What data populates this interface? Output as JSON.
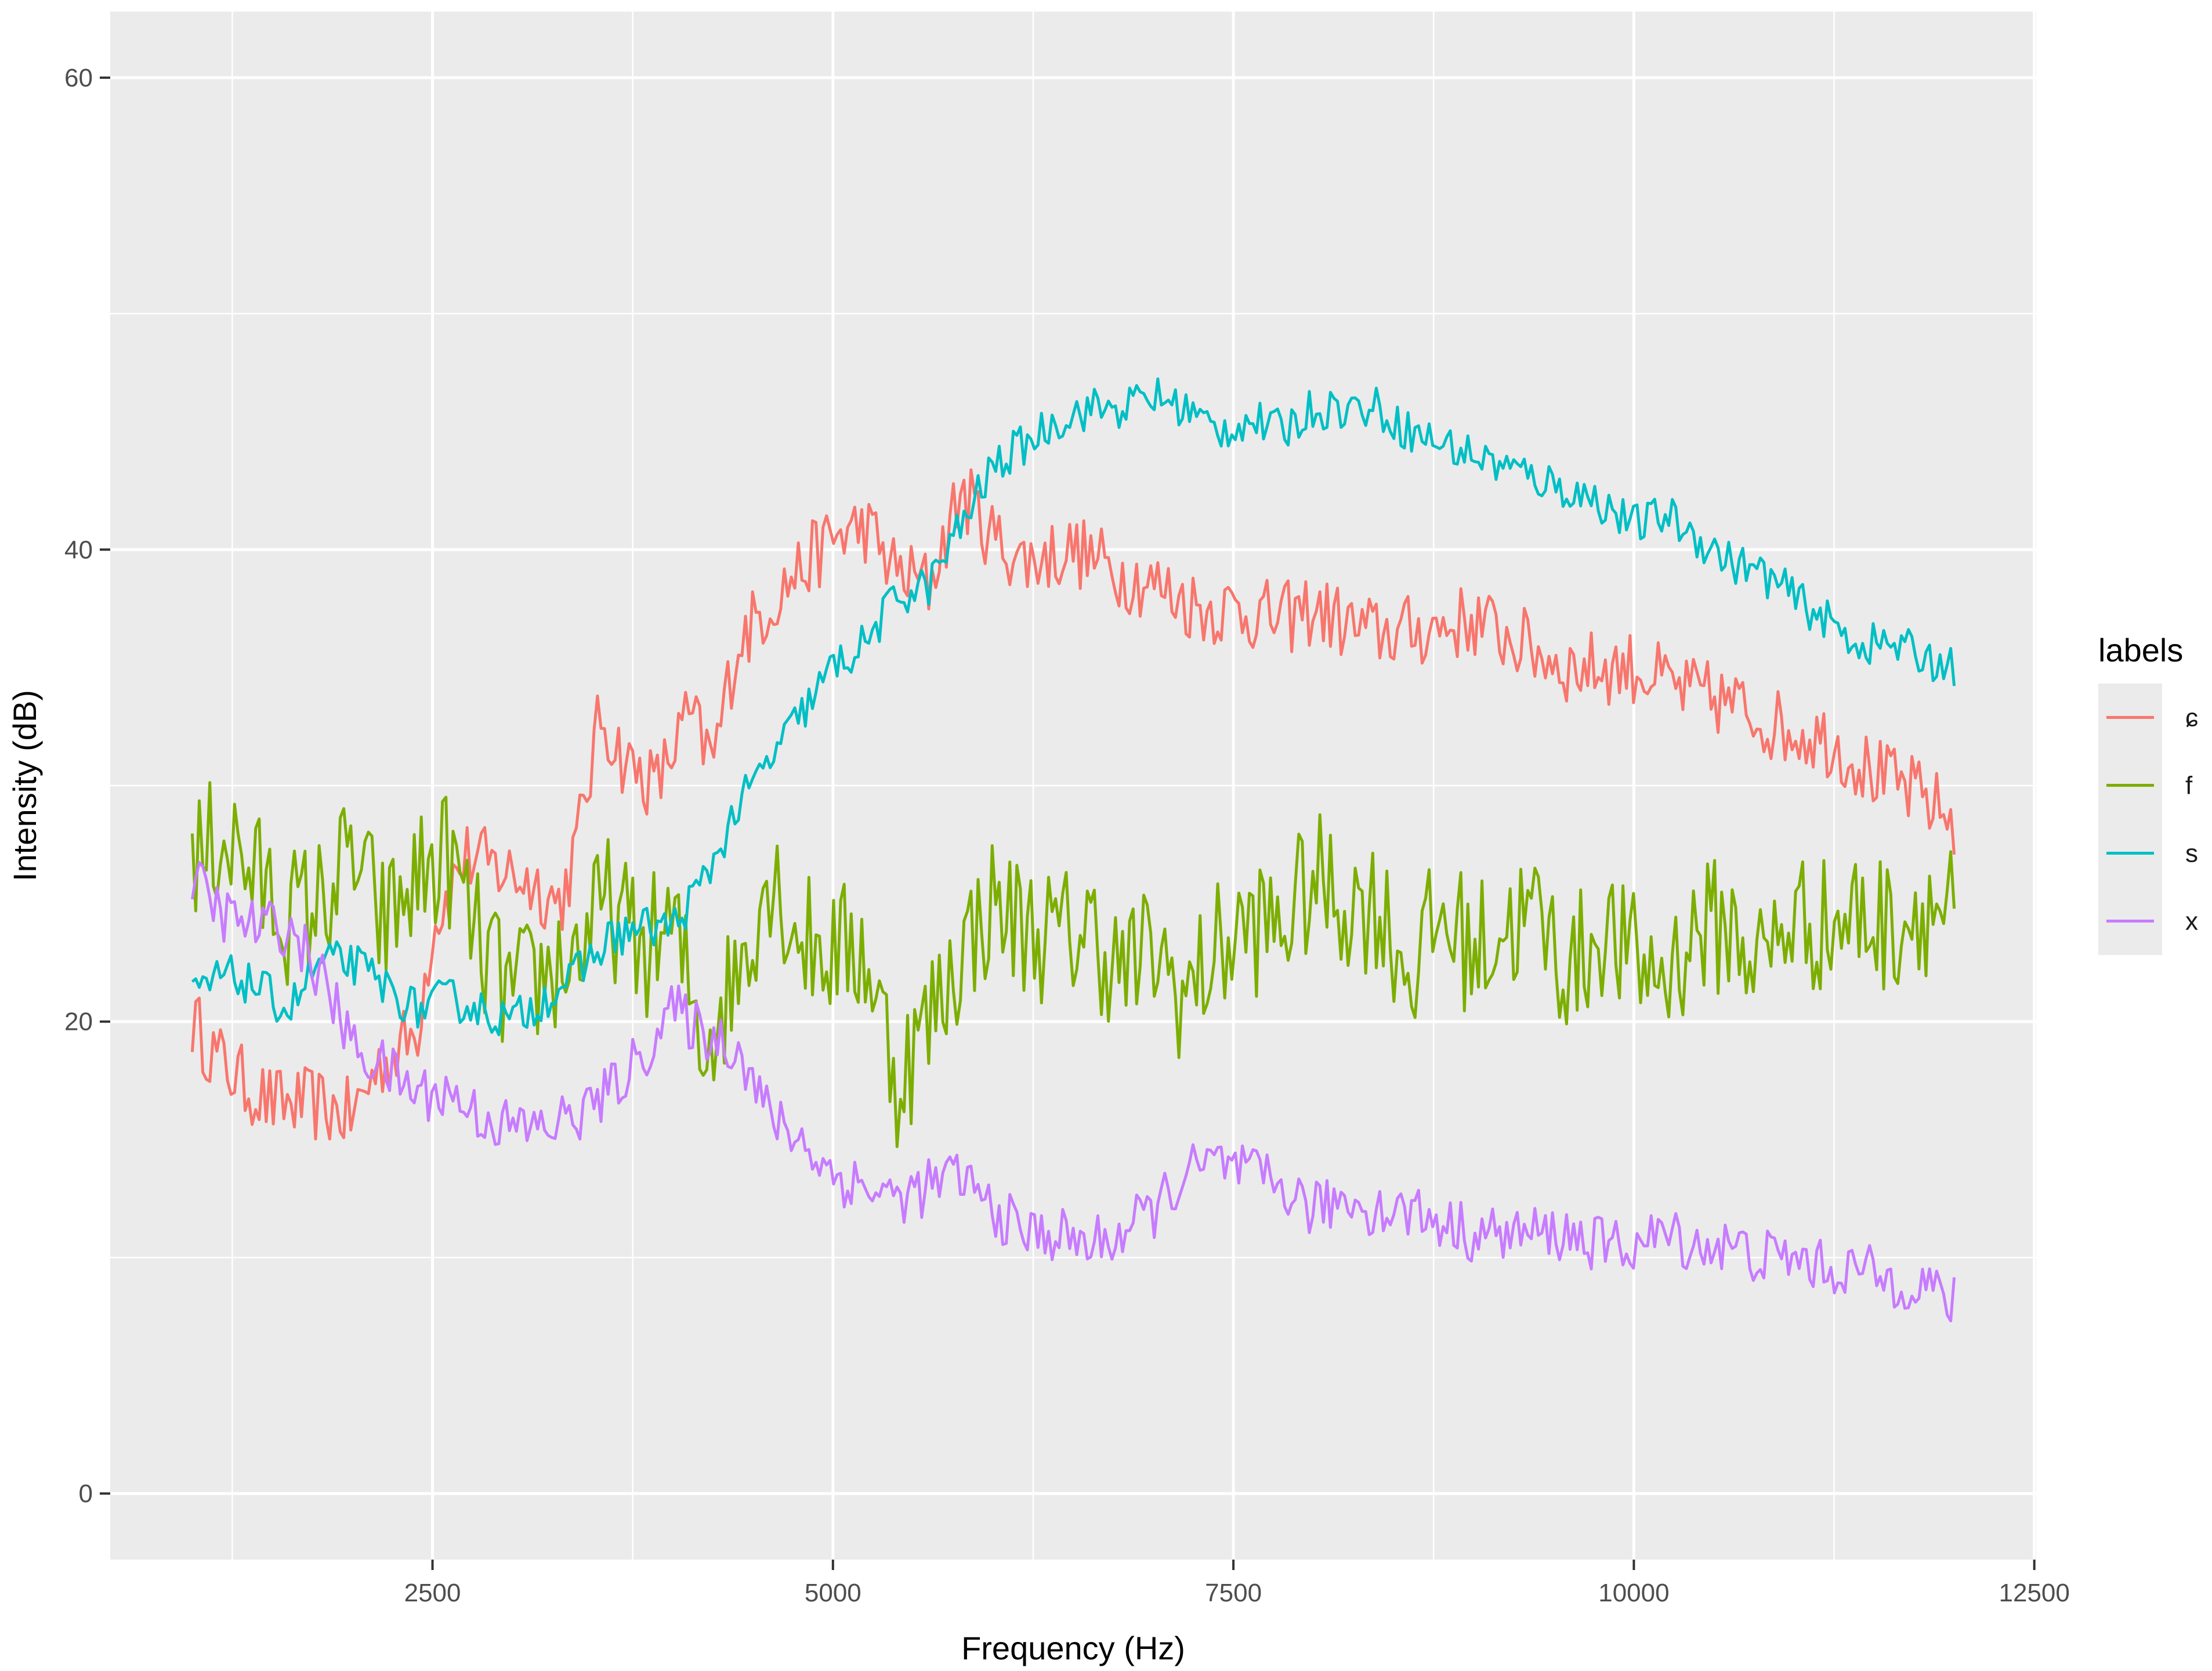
{
  "chart_data": {
    "type": "line",
    "xlabel": "Frequency (Hz)",
    "ylabel": "Intensity (dB)",
    "xlim": [
      488,
      12512
    ],
    "ylim": [
      -2.8,
      62.8
    ],
    "x_ticks": [
      2500,
      5000,
      7500,
      10000,
      12500
    ],
    "y_ticks": [
      0,
      20,
      40,
      60
    ],
    "grid": true,
    "legend": {
      "title": "labels",
      "placement": "right"
    },
    "colors": {
      "panel": "#ebebeb",
      "grid": "#ffffff"
    },
    "series": [
      {
        "name": "ɕ",
        "color": "#F8766D",
        "points": [
          [
            1000,
            20
          ],
          [
            1150,
            18.5
          ],
          [
            1300,
            17.5
          ],
          [
            1500,
            16.5
          ],
          [
            1750,
            16.5
          ],
          [
            2000,
            16
          ],
          [
            2150,
            18
          ],
          [
            2400,
            19.5
          ],
          [
            2500,
            24
          ],
          [
            2700,
            27
          ],
          [
            2900,
            26.5
          ],
          [
            3100,
            26
          ],
          [
            3300,
            25
          ],
          [
            3400,
            27.5
          ],
          [
            3550,
            33
          ],
          [
            3700,
            31
          ],
          [
            3900,
            30
          ],
          [
            4100,
            33
          ],
          [
            4250,
            31
          ],
          [
            4400,
            36
          ],
          [
            4700,
            38.5
          ],
          [
            5000,
            40.5
          ],
          [
            5200,
            41
          ],
          [
            5400,
            39
          ],
          [
            5600,
            38.5
          ],
          [
            5800,
            42.5
          ],
          [
            6000,
            40.5
          ],
          [
            6200,
            39.5
          ],
          [
            6500,
            40
          ],
          [
            6800,
            39
          ],
          [
            7000,
            38.5
          ],
          [
            7300,
            37.5
          ],
          [
            7500,
            37.5
          ],
          [
            7800,
            37
          ],
          [
            8000,
            37.5
          ],
          [
            8300,
            36.5
          ],
          [
            8600,
            36.5
          ],
          [
            9000,
            37
          ],
          [
            9300,
            36
          ],
          [
            9600,
            35
          ],
          [
            10000,
            35
          ],
          [
            10300,
            34
          ],
          [
            10600,
            33.5
          ],
          [
            10900,
            32.5
          ],
          [
            11200,
            32
          ],
          [
            11500,
            30.5
          ],
          [
            11800,
            29.5
          ],
          [
            12000,
            28.5
          ]
        ]
      },
      {
        "name": "f",
        "color": "#7CAE00",
        "points": [
          [
            1000,
            26.5
          ],
          [
            1200,
            28
          ],
          [
            1400,
            26
          ],
          [
            1600,
            24.5
          ],
          [
            1800,
            25
          ],
          [
            2000,
            27
          ],
          [
            2200,
            24
          ],
          [
            2400,
            26
          ],
          [
            2600,
            27
          ],
          [
            2800,
            23
          ],
          [
            3000,
            21
          ],
          [
            3200,
            22
          ],
          [
            3400,
            23
          ],
          [
            3600,
            25
          ],
          [
            3800,
            23
          ],
          [
            4000,
            24
          ],
          [
            4200,
            19
          ],
          [
            4400,
            22
          ],
          [
            4600,
            26.5
          ],
          [
            4800,
            23.5
          ],
          [
            5000,
            23
          ],
          [
            5200,
            23
          ],
          [
            5400,
            17.5
          ],
          [
            5600,
            20
          ],
          [
            5800,
            23
          ],
          [
            6000,
            25
          ],
          [
            6200,
            24
          ],
          [
            6400,
            23.5
          ],
          [
            6600,
            24
          ],
          [
            6800,
            22
          ],
          [
            7000,
            23
          ],
          [
            7200,
            21
          ],
          [
            7400,
            23
          ],
          [
            7600,
            24
          ],
          [
            7800,
            24
          ],
          [
            8000,
            26
          ],
          [
            8200,
            25
          ],
          [
            8400,
            25
          ],
          [
            8600,
            22
          ],
          [
            8800,
            24.5
          ],
          [
            9000,
            23
          ],
          [
            9200,
            24
          ],
          [
            9400,
            24.5
          ],
          [
            9600,
            22
          ],
          [
            9800,
            24
          ],
          [
            10000,
            22.5
          ],
          [
            10200,
            22
          ],
          [
            10400,
            24
          ],
          [
            10600,
            24
          ],
          [
            10800,
            22.5
          ],
          [
            11000,
            24.5
          ],
          [
            11200,
            24
          ],
          [
            11400,
            24.5
          ],
          [
            11600,
            24
          ],
          [
            11800,
            25
          ],
          [
            12000,
            24.5
          ]
        ]
      },
      {
        "name": "s",
        "color": "#00BFC4",
        "points": [
          [
            1000,
            21
          ],
          [
            1200,
            22
          ],
          [
            1400,
            21.5
          ],
          [
            1600,
            20.5
          ],
          [
            1800,
            22.5
          ],
          [
            2000,
            22.5
          ],
          [
            2200,
            21.5
          ],
          [
            2400,
            20.5
          ],
          [
            2600,
            21
          ],
          [
            2800,
            20.5
          ],
          [
            3000,
            20
          ],
          [
            3200,
            21
          ],
          [
            3400,
            22
          ],
          [
            3600,
            23.5
          ],
          [
            3800,
            24
          ],
          [
            4000,
            24
          ],
          [
            4200,
            26
          ],
          [
            4400,
            29
          ],
          [
            4600,
            31
          ],
          [
            4800,
            33
          ],
          [
            5000,
            35
          ],
          [
            5200,
            36
          ],
          [
            5400,
            38
          ],
          [
            5600,
            38.5
          ],
          [
            5800,
            41
          ],
          [
            6000,
            43.5
          ],
          [
            6200,
            44.5
          ],
          [
            6400,
            45.5
          ],
          [
            6600,
            46
          ],
          [
            6800,
            46
          ],
          [
            7000,
            46.5
          ],
          [
            7200,
            46
          ],
          [
            7400,
            45
          ],
          [
            7600,
            45.5
          ],
          [
            7800,
            45
          ],
          [
            8000,
            46
          ],
          [
            8200,
            46
          ],
          [
            8400,
            46
          ],
          [
            8600,
            45
          ],
          [
            8800,
            44.5
          ],
          [
            9000,
            44
          ],
          [
            9200,
            43.5
          ],
          [
            9400,
            43
          ],
          [
            9600,
            42.5
          ],
          [
            9800,
            42
          ],
          [
            10000,
            41
          ],
          [
            10200,
            41.5
          ],
          [
            10400,
            40.5
          ],
          [
            10600,
            39.5
          ],
          [
            10800,
            39
          ],
          [
            11000,
            38
          ],
          [
            11200,
            37
          ],
          [
            11400,
            36
          ],
          [
            11600,
            36
          ],
          [
            11800,
            35.5
          ],
          [
            12000,
            35
          ]
        ]
      },
      {
        "name": "x",
        "color": "#C77CFF",
        "points": [
          [
            1000,
            26
          ],
          [
            1200,
            24.5
          ],
          [
            1400,
            24
          ],
          [
            1600,
            24
          ],
          [
            1800,
            22
          ],
          [
            2000,
            19
          ],
          [
            2200,
            18
          ],
          [
            2400,
            17
          ],
          [
            2600,
            17
          ],
          [
            2800,
            16
          ],
          [
            3000,
            15.5
          ],
          [
            3200,
            15.5
          ],
          [
            3400,
            16
          ],
          [
            3600,
            17
          ],
          [
            3800,
            18.5
          ],
          [
            4000,
            20.5
          ],
          [
            4200,
            19.5
          ],
          [
            4400,
            19
          ],
          [
            4600,
            16
          ],
          [
            4800,
            15
          ],
          [
            5000,
            13.5
          ],
          [
            5200,
            13
          ],
          [
            5400,
            12.5
          ],
          [
            5600,
            13
          ],
          [
            5800,
            13.5
          ],
          [
            6000,
            12
          ],
          [
            6200,
            11
          ],
          [
            6400,
            11
          ],
          [
            6600,
            10.5
          ],
          [
            6800,
            11
          ],
          [
            7000,
            12
          ],
          [
            7200,
            13.5
          ],
          [
            7400,
            14
          ],
          [
            7600,
            13.5
          ],
          [
            7800,
            13
          ],
          [
            8000,
            12
          ],
          [
            8200,
            12.5
          ],
          [
            8400,
            12
          ],
          [
            8600,
            12
          ],
          [
            8800,
            11.5
          ],
          [
            9000,
            11
          ],
          [
            9200,
            11
          ],
          [
            9400,
            11
          ],
          [
            9600,
            11
          ],
          [
            9800,
            10.5
          ],
          [
            10000,
            10.5
          ],
          [
            10200,
            11
          ],
          [
            10400,
            10.5
          ],
          [
            10600,
            10.5
          ],
          [
            10800,
            10
          ],
          [
            11000,
            10
          ],
          [
            11200,
            9.5
          ],
          [
            11400,
            9.5
          ],
          [
            11600,
            9
          ],
          [
            11800,
            9
          ],
          [
            12000,
            8
          ]
        ]
      }
    ]
  }
}
